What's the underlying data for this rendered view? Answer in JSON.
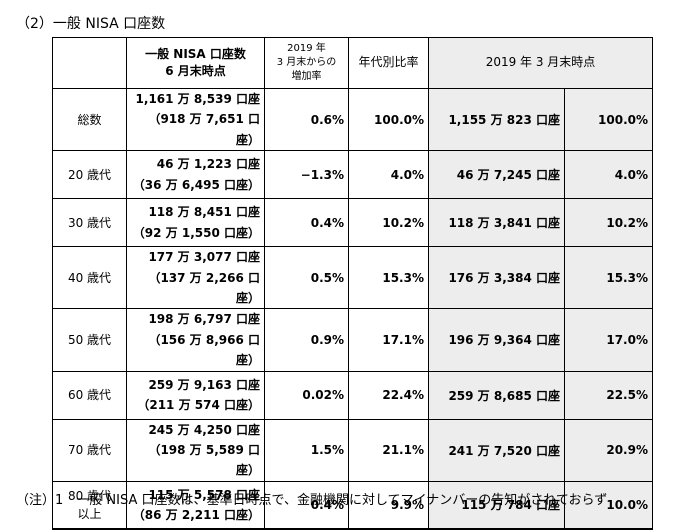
{
  "heading": "（2）一般 NISA 口座数",
  "headers": {
    "category": "",
    "count_line1": "一般 NISA 口座数",
    "count_line2": "6 月末時点",
    "increase_line1": "2019 年",
    "increase_line2": "3 月末からの",
    "increase_line3": "増加率",
    "ratio": "年代別比率",
    "prev": "2019 年 3 月末時点"
  },
  "rows": [
    {
      "label1": "総数",
      "label2": "",
      "count_main": "1,161 万 8,539 口座",
      "count_sub": "（918 万 7,651 口座）",
      "increase": "0.6%",
      "ratio": "100.0%",
      "prev_count": "1,155 万 823 口座",
      "prev_ratio": "100.0%"
    },
    {
      "label1": "20 歳代",
      "label2": "",
      "count_main": "46 万 1,223 口座",
      "count_sub": "（36 万 6,495 口座）",
      "increase": "−1.3%",
      "ratio": "4.0%",
      "prev_count": "46 万 7,245 口座",
      "prev_ratio": "4.0%"
    },
    {
      "label1": "30 歳代",
      "label2": "",
      "count_main": "118 万 8,451 口座",
      "count_sub": "（92 万 1,550 口座）",
      "increase": "0.4%",
      "ratio": "10.2%",
      "prev_count": "118 万 3,841 口座",
      "prev_ratio": "10.2%"
    },
    {
      "label1": "40 歳代",
      "label2": "",
      "count_main": "177 万 3,077 口座",
      "count_sub": "（137 万 2,266 口座）",
      "increase": "0.5%",
      "ratio": "15.3%",
      "prev_count": "176 万 3,384 口座",
      "prev_ratio": "15.3%"
    },
    {
      "label1": "50 歳代",
      "label2": "",
      "count_main": "198 万 6,797 口座",
      "count_sub": "（156 万 8,966 口座）",
      "increase": "0.9%",
      "ratio": "17.1%",
      "prev_count": "196 万 9,364 口座",
      "prev_ratio": "17.0%"
    },
    {
      "label1": "60 歳代",
      "label2": "",
      "count_main": "259 万 9,163 口座",
      "count_sub": "（211 万 574 口座）",
      "increase": "0.02%",
      "ratio": "22.4%",
      "prev_count": "259 万 8,685 口座",
      "prev_ratio": "22.5%"
    },
    {
      "label1": "70 歳代",
      "label2": "",
      "count_main": "245 万 4,250 口座",
      "count_sub": "（198 万 5,589 口座）",
      "increase": "1.5%",
      "ratio": "21.1%",
      "prev_count": "241 万 7,520 口座",
      "prev_ratio": "20.9%"
    },
    {
      "label1": "80 歳代",
      "label2": "以上",
      "count_main": "115 万 5,578 口座",
      "count_sub": "（86 万 2,211 口座）",
      "increase": "0.4%",
      "ratio": "9.9%",
      "prev_count": "115 万 784 口座",
      "prev_ratio": "10.0%"
    }
  ],
  "note": "（注）1　一般 NISA 口座数は、基準日時点で、金融機関に対してマイナンバーの告知がされておらず"
}
